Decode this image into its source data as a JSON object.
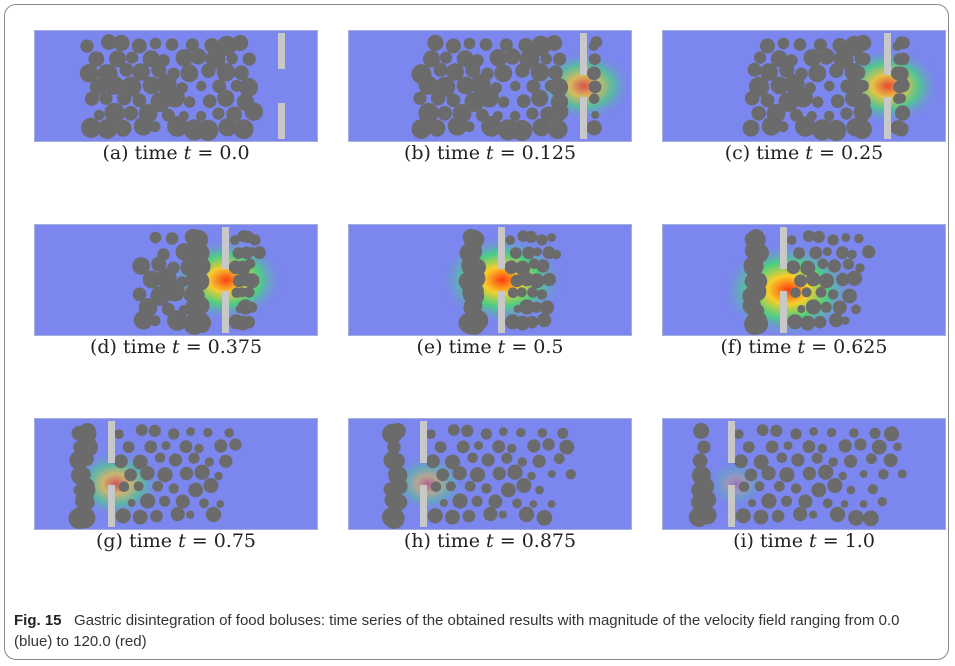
{
  "figure": {
    "panels": [
      {
        "label": "(a)",
        "text": "time",
        "var": "t",
        "eq": "= 0.0",
        "t": 0.0
      },
      {
        "label": "(b)",
        "text": "time",
        "var": "t",
        "eq": "= 0.125",
        "t": 0.125
      },
      {
        "label": "(c)",
        "text": "time",
        "var": "t",
        "eq": "= 0.25",
        "t": 0.25
      },
      {
        "label": "(d)",
        "text": "time",
        "var": "t",
        "eq": "= 0.375",
        "t": 0.375
      },
      {
        "label": "(e)",
        "text": "time",
        "var": "t",
        "eq": "= 0.5",
        "t": 0.5
      },
      {
        "label": "(f)",
        "text": "time",
        "var": "t",
        "eq": "= 0.625",
        "t": 0.625
      },
      {
        "label": "(g)",
        "text": "time",
        "var": "t",
        "eq": "= 0.75",
        "t": 0.75
      },
      {
        "label": "(h)",
        "text": "time",
        "var": "t",
        "eq": "= 0.875",
        "t": 0.875
      },
      {
        "label": "(i)",
        "text": "time",
        "var": "t",
        "eq": "= 1.0",
        "t": 1.0
      }
    ],
    "caption_label": "Fig. 15",
    "caption_text": "Gastric disintegration of food boluses: time series of the obtained results with magnitude of the velocity field ranging from 0.0 (blue) to 120.0 (red)",
    "colors": {
      "background_field": "#7b86ee",
      "particle": "#6b6b6b",
      "wall": "#c8c8c8",
      "high_velocity": "#ff3b10",
      "mid_velocity": "#3ee06a"
    }
  }
}
